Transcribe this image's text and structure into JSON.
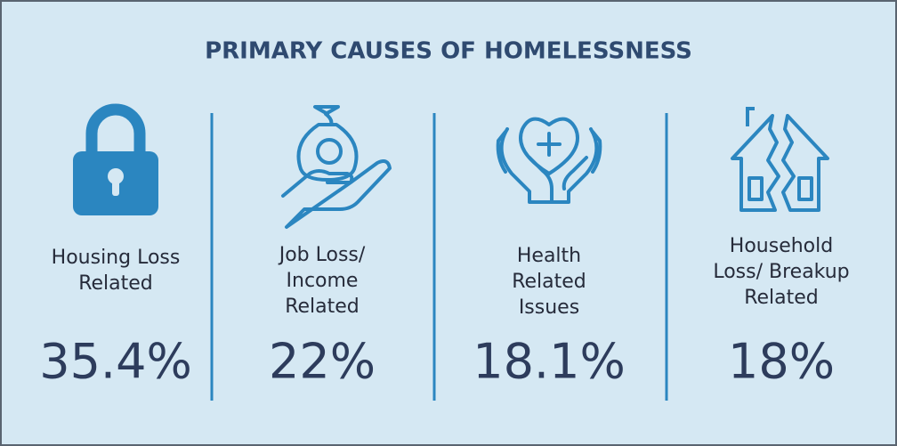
{
  "title": "PRIMARY CAUSES OF HOMELESSNESS",
  "items": [
    {
      "label_lines": [
        "Housing Loss",
        "Related"
      ],
      "value": "35.4%"
    },
    {
      "label_lines": [
        "Job Loss/",
        "Income",
        "Related"
      ],
      "value": "22%"
    },
    {
      "label_lines": [
        "Health",
        "Related",
        "Issues"
      ],
      "value": "18.1%"
    },
    {
      "label_lines": [
        "Household",
        "Loss/ Breakup",
        "Related"
      ],
      "value": "18%"
    }
  ]
}
